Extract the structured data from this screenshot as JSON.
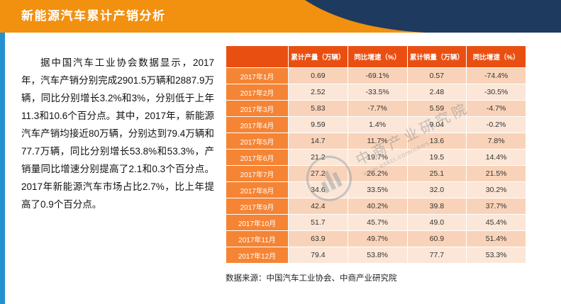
{
  "header": {
    "title": "新能源汽车累计产销分析"
  },
  "intro": {
    "text": "据中国汽车工业协会数据显示，2017年，汽车产销分别完成2901.5万辆和2887.9万辆，同比分别增长3.2%和3%，分别低于上年11.3和10.6个百分点。其中，2017年，新能源汽车产销均接近80万辆，分别达到79.4万辆和77.7万辆，同比分别增长53.8%和53.3%，产销量同比增速分别提高了2.1和0.3个百分点。2017年新能源汽车市场占比2.7%，比上年提高了0.9个百分点。"
  },
  "source": {
    "text": "数据来源：中国汽车工业协会、中商产业研究院"
  },
  "watermark": {
    "org": "中商产业研究院",
    "url": "www.askci.com/news"
  },
  "colors": {
    "header_orange": "#F2900F",
    "header_navy": "#1F3A5F",
    "table_header_red": "#EA4F12",
    "month_column_orange": "#F58434",
    "row_odd_peach": "#F9D3B9",
    "row_even_peach": "#FBE6D7",
    "accent_blue": "#2391CF"
  },
  "chart_data": {
    "type": "table",
    "title": "新能源汽车累计产销分析",
    "columns": [
      "",
      "累计产量（万辆）",
      "同比增速（%）",
      "累计销量（万辆）",
      "同比增速（%）"
    ],
    "rows": [
      [
        "2017年1月",
        "0.69",
        "-69.1%",
        "0.57",
        "-74.4%"
      ],
      [
        "2017年2月",
        "2.52",
        "-33.5%",
        "2.48",
        "-30.5%"
      ],
      [
        "2017年3月",
        "5.83",
        "-7.7%",
        "5.59",
        "-4.7%"
      ],
      [
        "2017年4月",
        "9.59",
        "1.4%",
        "9.04",
        "-0.2%"
      ],
      [
        "2017年5月",
        "14.7",
        "11.7%",
        "13.6",
        "7.8%"
      ],
      [
        "2017年6月",
        "21.2",
        "19.7%",
        "19.5",
        "14.4%"
      ],
      [
        "2017年7月",
        "27.2",
        "26.2%",
        "25.1",
        "21.5%"
      ],
      [
        "2017年8月",
        "34.6",
        "33.5%",
        "32.0",
        "30.2%"
      ],
      [
        "2017年9月",
        "42.4",
        "40.2%",
        "39.8",
        "37.7%"
      ],
      [
        "2017年10月",
        "51.7",
        "45.7%",
        "49.0",
        "45.4%"
      ],
      [
        "2017年11月",
        "63.9",
        "49.7%",
        "60.9",
        "51.4%"
      ],
      [
        "2017年12月",
        "79.4",
        "53.8%",
        "77.7",
        "53.3%"
      ]
    ]
  }
}
